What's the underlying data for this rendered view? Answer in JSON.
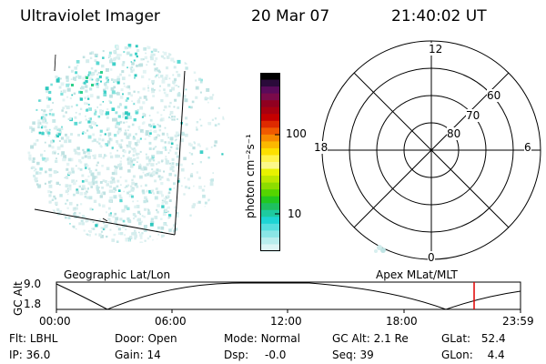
{
  "header": {
    "title": "Ultraviolet Imager",
    "date": "20 Mar 07",
    "time": "21:40:02 UT"
  },
  "colorbar": {
    "label": "photon cm⁻²s⁻¹",
    "ticks": [
      "100",
      "10"
    ],
    "colors": [
      "#000000",
      "#2a0a3a",
      "#5a0a5a",
      "#7a0a4a",
      "#900020",
      "#a80010",
      "#c40000",
      "#de2a00",
      "#f05a00",
      "#f88a00",
      "#fcb800",
      "#fde000",
      "#fff34a",
      "#fbf88a",
      "#e8f200",
      "#bde800",
      "#8ddd00",
      "#55d400",
      "#22c820",
      "#1ec060",
      "#1ecaa0",
      "#1ed4d4",
      "#55dede",
      "#8ae6e6",
      "#b8eeee",
      "#dcf6f6"
    ]
  },
  "polar": {
    "mlt_labels": {
      "top": "12",
      "left": "18",
      "right": "6",
      "bottom": "0"
    },
    "lat_labels": [
      "60",
      "70",
      "80"
    ]
  },
  "timeline": {
    "ylabel": "GC Alt",
    "yticks": [
      "9.0",
      "1.8"
    ],
    "left_label": "Geographic Lat/Lon",
    "right_label": "Apex  MLat/MLT",
    "xticks": [
      "00:00",
      "06:00",
      "12:00",
      "18:00",
      "23:59"
    ]
  },
  "info": {
    "row1": [
      {
        "label": "Flt:",
        "value": "LBHL"
      },
      {
        "label": "Door:",
        "value": "Open"
      },
      {
        "label": "Mode:",
        "value": "Normal"
      },
      {
        "label": "GC Alt:",
        "value": "2.1 Re"
      },
      {
        "label": "GLat:",
        "value": "52.4"
      }
    ],
    "row2": [
      {
        "label": "IP:",
        "value": "36.0"
      },
      {
        "label": "Gain:",
        "value": "14"
      },
      {
        "label": "Dsp:",
        "value": "-0.0"
      },
      {
        "label": "Seq:",
        "value": "39"
      },
      {
        "label": "GLon:",
        "value": "4.4"
      }
    ]
  }
}
